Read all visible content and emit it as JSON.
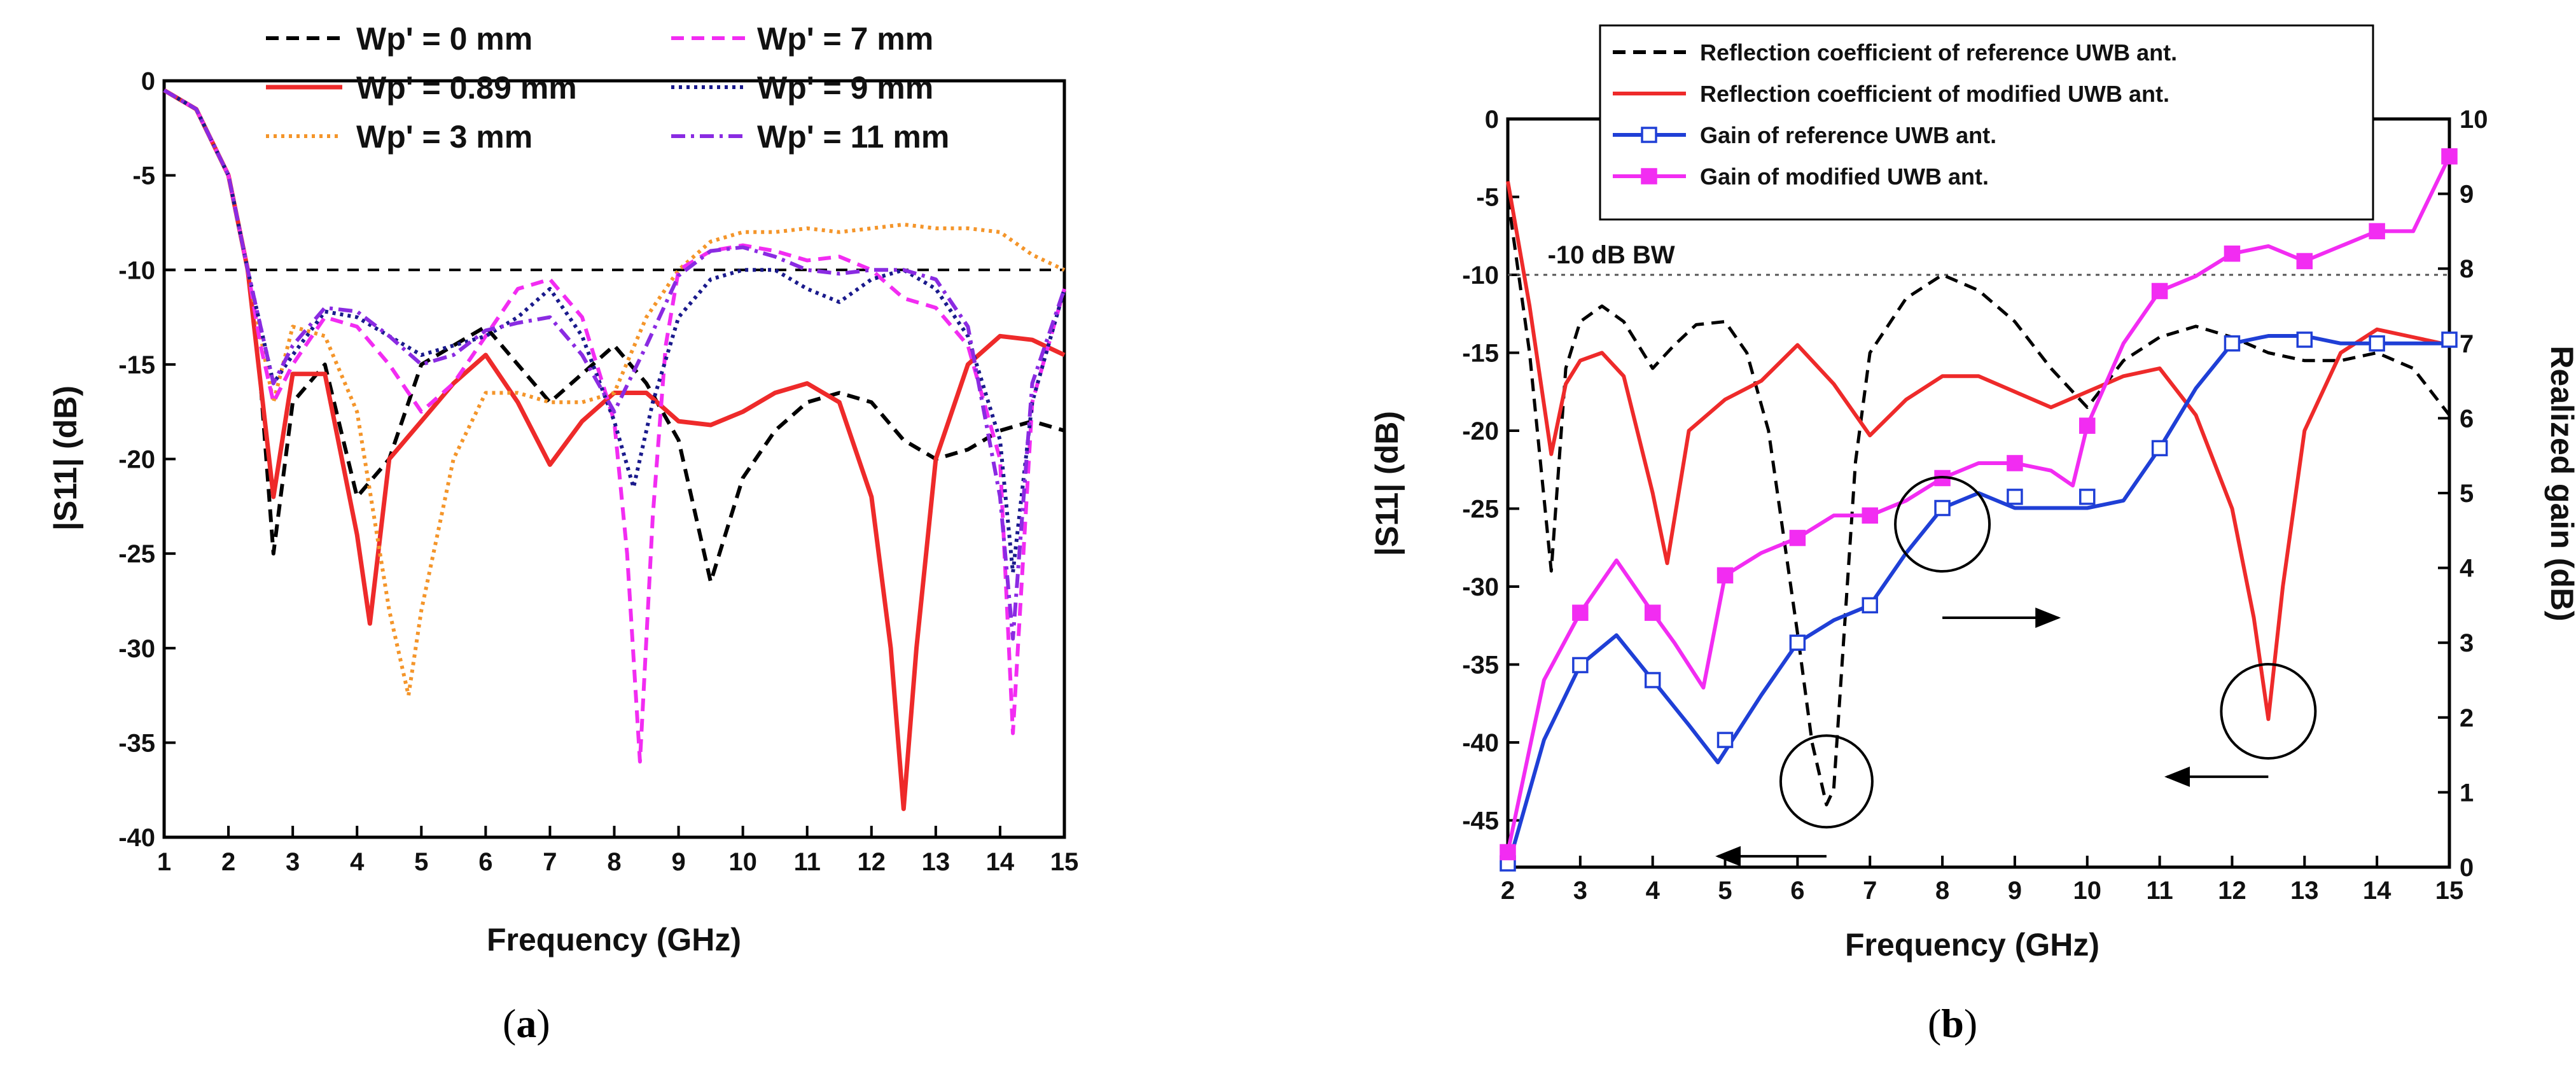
{
  "chart_data": [
    {
      "panel": "a",
      "type": "line",
      "panel_label": "a",
      "title": "",
      "xlabel": "Frequency (GHz)",
      "ylabel": "|S11| (dB)",
      "xlim": [
        1,
        15
      ],
      "ylim": [
        -40,
        0
      ],
      "xticks": [
        1,
        2,
        3,
        4,
        5,
        6,
        7,
        8,
        9,
        10,
        11,
        12,
        13,
        14,
        15
      ],
      "yticks": [
        0,
        -5,
        -10,
        -15,
        -20,
        -25,
        -30,
        -35,
        -40
      ],
      "reference_line": {
        "y": -10
      },
      "legend_position": "top",
      "series": [
        {
          "name": "Wp' = 0 mm",
          "color": "#000000",
          "dash": "dashed",
          "x": [
            1,
            1.5,
            2,
            2.3,
            2.5,
            2.7,
            3,
            3.5,
            4,
            4.5,
            5,
            5.5,
            6,
            6.5,
            7,
            7.5,
            8,
            8.5,
            9,
            9.5,
            10,
            10.5,
            11,
            11.5,
            12,
            12.5,
            13,
            13.5,
            14,
            14.5,
            15
          ],
          "y": [
            -0.5,
            -1.5,
            -5,
            -10,
            -16,
            -25,
            -17,
            -15,
            -22,
            -20,
            -15,
            -14,
            -13,
            -15,
            -17,
            -15.5,
            -14,
            -16,
            -19,
            -26.5,
            -21,
            -18.5,
            -17,
            -16.5,
            -17,
            -19,
            -20,
            -19.5,
            -18.5,
            -18,
            -18.5
          ]
        },
        {
          "name": "Wp' = 0.89 mm",
          "color": "#ee2a2a",
          "dash": "solid",
          "x": [
            1,
            1.5,
            2,
            2.3,
            2.5,
            2.7,
            3,
            3.5,
            4,
            4.2,
            4.5,
            5,
            5.5,
            6,
            6.5,
            7,
            7.5,
            8,
            8.5,
            9,
            9.5,
            10,
            10.5,
            11,
            11.5,
            12,
            12.3,
            12.5,
            12.7,
            13,
            13.5,
            14,
            14.5,
            15
          ],
          "y": [
            -0.5,
            -1.5,
            -5,
            -10,
            -16,
            -22,
            -15.5,
            -15.5,
            -24,
            -28.7,
            -20,
            -18,
            -16,
            -14.5,
            -17,
            -20.3,
            -18,
            -16.5,
            -16.5,
            -18,
            -18.2,
            -17.5,
            -16.5,
            -16,
            -17,
            -22,
            -30,
            -38.5,
            -30,
            -20,
            -15,
            -13.5,
            -13.7,
            -14.5
          ]
        },
        {
          "name": "Wp' = 3 mm",
          "color": "#f4952a",
          "dash": "dotted",
          "x": [
            1,
            1.5,
            2,
            2.3,
            2.5,
            2.7,
            3,
            3.5,
            4,
            4.5,
            4.8,
            5,
            5.5,
            6,
            6.5,
            7,
            7.5,
            8,
            8.5,
            9,
            9.5,
            10,
            10.5,
            11,
            11.5,
            12,
            12.5,
            13,
            13.5,
            14,
            14.5,
            15
          ],
          "y": [
            -0.5,
            -1.5,
            -5,
            -10,
            -13.5,
            -17,
            -13,
            -13.5,
            -17.5,
            -28,
            -32.5,
            -28,
            -20,
            -16.5,
            -16.5,
            -17,
            -17,
            -16.5,
            -12.5,
            -10,
            -8.5,
            -8,
            -8,
            -7.8,
            -8,
            -7.8,
            -7.6,
            -7.8,
            -7.8,
            -8,
            -9.2,
            -10
          ]
        },
        {
          "name": "Wp' = 7 mm",
          "color": "#f22cf2",
          "dash": "dashed",
          "x": [
            1,
            1.5,
            2,
            2.3,
            2.5,
            2.7,
            3,
            3.5,
            4,
            4.5,
            5,
            5.5,
            6,
            6.5,
            7,
            7.5,
            8,
            8.2,
            8.4,
            8.6,
            8.8,
            9,
            9.5,
            10,
            10.5,
            11,
            11.5,
            12,
            12.5,
            13,
            13.5,
            14,
            14.2,
            14.5,
            15
          ],
          "y": [
            -0.5,
            -1.5,
            -5,
            -10,
            -14,
            -17,
            -15,
            -12.5,
            -13,
            -15,
            -17.5,
            -16,
            -13.5,
            -11,
            -10.5,
            -12.5,
            -18,
            -25,
            -36,
            -23,
            -14,
            -10,
            -9,
            -8.7,
            -9,
            -9.5,
            -9.3,
            -10,
            -11.5,
            -12,
            -14,
            -20,
            -34.5,
            -17,
            -11
          ]
        },
        {
          "name": "Wp' = 9 mm",
          "color": "#1a1a8c",
          "dash": "dotted",
          "x": [
            1,
            1.5,
            2,
            2.3,
            2.5,
            2.7,
            3,
            3.5,
            4,
            4.5,
            5,
            5.5,
            6,
            6.5,
            7,
            7.5,
            8,
            8.3,
            8.6,
            9,
            9.5,
            10,
            10.5,
            11,
            11.5,
            12,
            12.5,
            13,
            13.5,
            14,
            14.2,
            14.5,
            15
          ],
          "y": [
            -0.5,
            -1.5,
            -5,
            -10,
            -13,
            -16,
            -14.5,
            -12.2,
            -12.5,
            -13.5,
            -14.5,
            -14,
            -13.5,
            -12.5,
            -11,
            -13.5,
            -18,
            -21.5,
            -17,
            -12.5,
            -10.5,
            -10,
            -10,
            -11,
            -11.7,
            -10.5,
            -10,
            -11,
            -13.5,
            -19,
            -26,
            -17,
            -11
          ]
        },
        {
          "name": "Wp' = 11 mm",
          "color": "#8a2be2",
          "dash": "dashdot",
          "x": [
            1,
            1.5,
            2,
            2.3,
            2.5,
            2.7,
            3,
            3.5,
            4,
            4.5,
            5,
            5.5,
            6,
            6.5,
            7,
            7.5,
            8,
            8.5,
            9,
            9.5,
            10,
            10.5,
            11,
            11.5,
            12,
            12.5,
            13,
            13.5,
            14,
            14.2,
            14.5,
            15
          ],
          "y": [
            -0.5,
            -1.5,
            -5,
            -10,
            -13,
            -16,
            -14,
            -12,
            -12.2,
            -13.5,
            -15,
            -14.5,
            -13.2,
            -12.8,
            -12.5,
            -14.5,
            -17.5,
            -14,
            -10.3,
            -9,
            -8.8,
            -9.3,
            -10,
            -10.2,
            -10,
            -10,
            -10.5,
            -13,
            -22,
            -29.5,
            -16,
            -11
          ]
        }
      ]
    },
    {
      "panel": "b",
      "type": "line",
      "panel_label": "b",
      "title": "",
      "xlabel": "Frequency (GHz)",
      "ylabel": "|S11| (dB)",
      "y2label": "Realized gain (dB)",
      "xlim": [
        2,
        15
      ],
      "ylim": [
        -48,
        0
      ],
      "y2lim": [
        0,
        10
      ],
      "xticks": [
        2,
        3,
        4,
        5,
        6,
        7,
        8,
        9,
        10,
        11,
        12,
        13,
        14,
        15
      ],
      "yticks": [
        0,
        -5,
        -10,
        -15,
        -20,
        -25,
        -30,
        -35,
        -40,
        -45
      ],
      "y2ticks": [
        0,
        1,
        2,
        3,
        4,
        5,
        6,
        7,
        8,
        9,
        10
      ],
      "reference_line": {
        "y": -10,
        "label": "-10 dB BW"
      },
      "legend_position": "top-right",
      "series": [
        {
          "name": "Reflection coefficient of reference UWB ant.",
          "axis": "left",
          "color": "#000000",
          "dash": "dashed",
          "marker": "none",
          "x": [
            2,
            2.3,
            2.6,
            2.8,
            3,
            3.3,
            3.6,
            4,
            4.3,
            4.6,
            5,
            5.3,
            5.6,
            6,
            6.2,
            6.4,
            6.5,
            6.6,
            6.8,
            7,
            7.5,
            8,
            8.5,
            9,
            9.5,
            10,
            10.5,
            11,
            11.5,
            12,
            12.5,
            13,
            13.5,
            14,
            14.5,
            15
          ],
          "y": [
            -5,
            -15,
            -29,
            -16,
            -13,
            -12,
            -13,
            -16,
            -14.5,
            -13.2,
            -13,
            -15,
            -20,
            -33,
            -40,
            -44,
            -43,
            -36,
            -22,
            -15,
            -11.5,
            -10,
            -11,
            -13,
            -16,
            -18.5,
            -15.5,
            -14,
            -13.3,
            -14,
            -15,
            -15.5,
            -15.5,
            -15,
            -16,
            -19
          ]
        },
        {
          "name": "Reflection coefficient of modified UWB ant.",
          "axis": "left",
          "color": "#ee2a2a",
          "dash": "solid",
          "marker": "none",
          "x": [
            2,
            2.3,
            2.6,
            2.8,
            3,
            3.3,
            3.6,
            4,
            4.2,
            4.5,
            5,
            5.5,
            6,
            6.5,
            7,
            7.5,
            8,
            8.5,
            9,
            9.5,
            10,
            10.5,
            11,
            11.5,
            12,
            12.3,
            12.5,
            12.7,
            13,
            13.5,
            14,
            14.5,
            15
          ],
          "y": [
            -4,
            -12,
            -21.5,
            -17,
            -15.5,
            -15,
            -16.5,
            -24,
            -28.5,
            -20,
            -18,
            -16.8,
            -14.5,
            -17,
            -20.3,
            -18,
            -16.5,
            -16.5,
            -17.5,
            -18.5,
            -17.5,
            -16.5,
            -16,
            -19,
            -25,
            -32,
            -38.5,
            -30,
            -20,
            -15,
            -13.5,
            -14,
            -14.5
          ]
        },
        {
          "name": "Gain of reference UWB ant.",
          "axis": "right",
          "color": "#1f3fd6",
          "dash": "solid",
          "marker": "open-square",
          "x": [
            2,
            2.5,
            3,
            3.5,
            4,
            4.5,
            4.9,
            5.5,
            6,
            6.5,
            7,
            7.5,
            8,
            8.5,
            9,
            9.5,
            10,
            10.5,
            11,
            11.5,
            12,
            12.5,
            13,
            13.5,
            14,
            14.5,
            15
          ],
          "y": [
            0,
            1.7,
            2.7,
            3.1,
            2.5,
            1.9,
            1.4,
            2.3,
            3.0,
            3.3,
            3.5,
            4.2,
            4.8,
            5.0,
            4.8,
            4.8,
            4.8,
            4.9,
            5.6,
            6.4,
            7.0,
            7.1,
            7.1,
            7.0,
            7.0,
            7.0,
            7.0
          ],
          "marker_x": [
            2,
            3,
            4,
            5,
            6,
            7,
            8,
            9,
            10,
            11,
            12,
            13,
            14,
            15
          ],
          "marker_y": [
            0.05,
            2.7,
            2.5,
            1.7,
            3.0,
            3.5,
            4.8,
            4.95,
            4.95,
            5.6,
            7.0,
            7.05,
            7.0,
            7.05
          ]
        },
        {
          "name": "Gain of modified UWB ant.",
          "axis": "right",
          "color": "#f22cf2",
          "dash": "solid",
          "marker": "filled-square",
          "x": [
            2,
            2.5,
            3,
            3.5,
            4,
            4.3,
            4.7,
            5,
            5.5,
            6,
            6.5,
            7,
            7.5,
            8,
            8.5,
            9,
            9.5,
            9.8,
            10,
            10.5,
            11,
            11.5,
            12,
            12.5,
            13,
            13.5,
            14,
            14.5,
            15
          ],
          "y": [
            0.2,
            2.5,
            3.4,
            4.1,
            3.4,
            3.0,
            2.4,
            3.9,
            4.2,
            4.4,
            4.7,
            4.7,
            4.9,
            5.2,
            5.4,
            5.4,
            5.3,
            5.1,
            5.9,
            7.0,
            7.7,
            7.9,
            8.2,
            8.3,
            8.1,
            8.3,
            8.5,
            8.5,
            9.5
          ],
          "marker_x": [
            2,
            3,
            4,
            5,
            6,
            7,
            8,
            9,
            10,
            11,
            12,
            13,
            14,
            15
          ],
          "marker_y": [
            0.2,
            3.4,
            3.4,
            3.9,
            4.4,
            4.7,
            5.2,
            5.4,
            5.9,
            7.7,
            8.2,
            8.1,
            8.5,
            9.5
          ]
        }
      ]
    }
  ]
}
